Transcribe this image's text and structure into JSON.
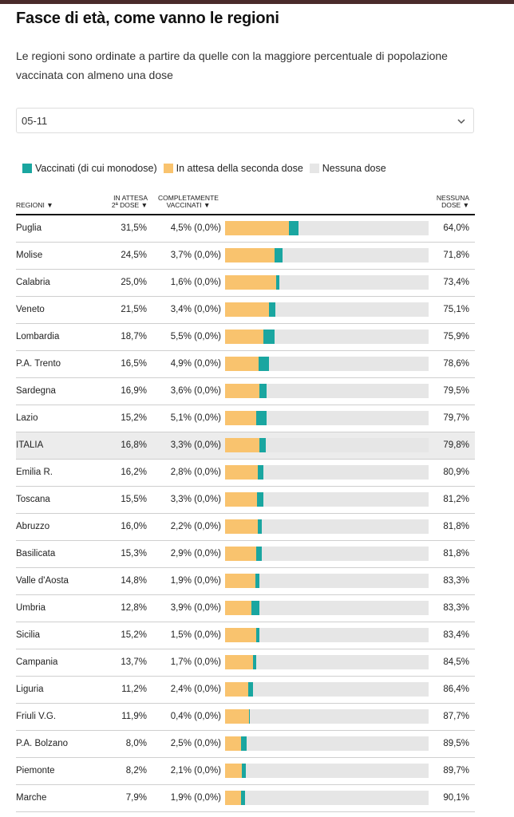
{
  "title": "Fasce di età, come vanno le regioni",
  "subtitle": "Le regioni sono ordinate a partire da quelle con la maggiore percentuale di popolazione vaccinata con almeno una dose",
  "select": {
    "value": "05-11",
    "icon": "chevron-down-icon"
  },
  "legend": [
    {
      "label": "Vaccinati (di cui monodose)",
      "color": "#1aa6a0"
    },
    {
      "label": "In attesa della seconda dose",
      "color": "#f9c36e"
    },
    {
      "label": "Nessuna dose",
      "color": "#e6e6e6"
    }
  ],
  "headers": {
    "regioni": "REGIONI ▼",
    "attesa_1": "IN ATTESA",
    "attesa_2": "2ª DOSE ▼",
    "completi_1": "COMPLETAMENTE",
    "completi_2": "VACCINATI ▼",
    "nessuna_1": "NESSUNA",
    "nessuna_2": "DOSE ▼"
  },
  "chart_data": {
    "type": "bar",
    "stacked": true,
    "orientation": "horizontal",
    "categories": [
      "Puglia",
      "Molise",
      "Calabria",
      "Veneto",
      "Lombardia",
      "P.A. Trento",
      "Sardegna",
      "Lazio",
      "ITALIA",
      "Emilia R.",
      "Toscana",
      "Abruzzo",
      "Basilicata",
      "Valle d'Aosta",
      "Umbria",
      "Sicilia",
      "Campania",
      "Liguria",
      "Friuli V.G.",
      "P.A. Bolzano",
      "Piemonte",
      "Marche"
    ],
    "highlight": "ITALIA",
    "xlim": [
      0,
      100
    ],
    "series": [
      {
        "name": "In attesa della seconda dose",
        "color": "#f9c36e",
        "values": [
          31.5,
          24.5,
          25.0,
          21.5,
          18.7,
          16.5,
          16.9,
          15.2,
          16.8,
          16.2,
          15.5,
          16.0,
          15.3,
          14.8,
          12.8,
          15.2,
          13.7,
          11.2,
          11.9,
          8.0,
          8.2,
          7.9
        ],
        "labels": [
          "31,5%",
          "24,5%",
          "25,0%",
          "21,5%",
          "18,7%",
          "16,5%",
          "16,9%",
          "15,2%",
          "16,8%",
          "16,2%",
          "15,5%",
          "16,0%",
          "15,3%",
          "14,8%",
          "12,8%",
          "15,2%",
          "13,7%",
          "11,2%",
          "11,9%",
          "8,0%",
          "8,2%",
          "7,9%"
        ]
      },
      {
        "name": "Vaccinati (di cui monodose)",
        "color": "#1aa6a0",
        "values": [
          4.5,
          3.7,
          1.6,
          3.4,
          5.5,
          4.9,
          3.6,
          5.1,
          3.3,
          2.8,
          3.3,
          2.2,
          2.9,
          1.9,
          3.9,
          1.5,
          1.7,
          2.4,
          0.4,
          2.5,
          2.1,
          1.9
        ],
        "labels": [
          "4,5% (0,0%)",
          "3,7% (0,0%)",
          "1,6% (0,0%)",
          "3,4% (0,0%)",
          "5,5% (0,0%)",
          "4,9% (0,0%)",
          "3,6% (0,0%)",
          "5,1% (0,0%)",
          "3,3% (0,0%)",
          "2,8% (0,0%)",
          "3,3% (0,0%)",
          "2,2% (0,0%)",
          "2,9% (0,0%)",
          "1,9% (0,0%)",
          "3,9% (0,0%)",
          "1,5% (0,0%)",
          "1,7% (0,0%)",
          "2,4% (0,0%)",
          "0,4% (0,0%)",
          "2,5% (0,0%)",
          "2,1% (0,0%)",
          "1,9% (0,0%)"
        ]
      },
      {
        "name": "Nessuna dose",
        "color": "#e6e6e6",
        "values": [
          64.0,
          71.8,
          73.4,
          75.1,
          75.9,
          78.6,
          79.5,
          79.7,
          79.8,
          80.9,
          81.2,
          81.8,
          81.8,
          83.3,
          83.3,
          83.4,
          84.5,
          86.4,
          87.7,
          89.5,
          89.7,
          90.1
        ],
        "labels": [
          "64,0%",
          "71,8%",
          "73,4%",
          "75,1%",
          "75,9%",
          "78,6%",
          "79,5%",
          "79,7%",
          "79,8%",
          "80,9%",
          "81,2%",
          "81,8%",
          "81,8%",
          "83,3%",
          "83,3%",
          "83,4%",
          "84,5%",
          "86,4%",
          "87,7%",
          "89,5%",
          "89,7%",
          "90,1%"
        ]
      }
    ]
  }
}
